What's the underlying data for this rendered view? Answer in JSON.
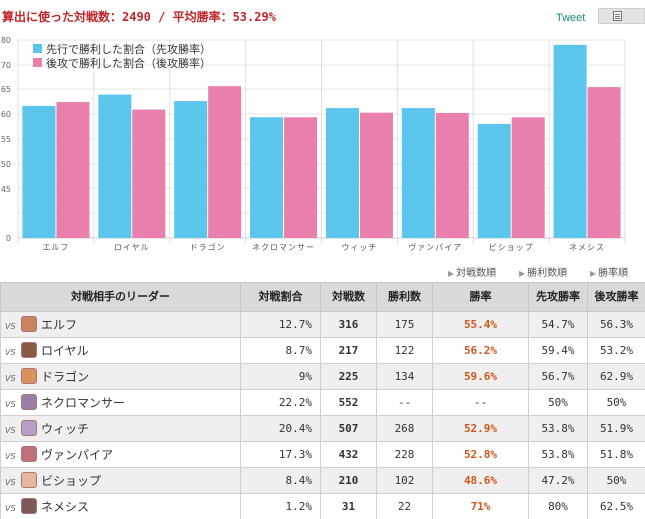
{
  "header": {
    "summary": "算出に使った対戦数：2490 / 平均勝率：53.29%",
    "tweet_label": "Tweet",
    "share_icon": "document-icon"
  },
  "chart_data": {
    "type": "bar",
    "title": "",
    "xlabel": "",
    "ylabel": "",
    "y_ticks": [
      "0",
      "45",
      "50",
      "55",
      "60",
      "65",
      "70",
      "80"
    ],
    "legend_position": "top-left",
    "categories": [
      "エルフ",
      "ロイヤル",
      "ドラゴン",
      "ネクロマンサー",
      "ウィッチ",
      "ヴァンパイア",
      "ビショップ",
      "ネメシス"
    ],
    "series": [
      {
        "name": "先行で勝利した割合（先攻勝率）",
        "color": "#5bc5ec",
        "values": [
          54.7,
          59.4,
          56.7,
          50,
          53.8,
          53.8,
          47.2,
          80
        ]
      },
      {
        "name": "後攻で勝利した割合（後攻勝率）",
        "color": "#e87fac",
        "values": [
          56.3,
          53.2,
          62.9,
          50,
          51.9,
          51.8,
          50,
          62.5
        ]
      }
    ]
  },
  "sort": {
    "by_battles": "対戦数順",
    "by_wins": "勝利数順",
    "by_winrate": "勝率順"
  },
  "table": {
    "headers": {
      "leader": "対戦相手のリーダー",
      "share": "対戦割合",
      "battles": "対戦数",
      "wins": "勝利数",
      "winrate": "勝率",
      "first_winrate": "先攻勝率",
      "second_winrate": "後攻勝率"
    },
    "vs_label": "VS",
    "rows": [
      {
        "leader": "エルフ",
        "share": "12.7%",
        "battles": "316",
        "wins": "175",
        "winrate": "55.4%",
        "first": "54.7%",
        "second": "56.3%",
        "avatar_color": "#c8845c"
      },
      {
        "leader": "ロイヤル",
        "share": "8.7%",
        "battles": "217",
        "wins": "122",
        "winrate": "56.2%",
        "first": "59.4%",
        "second": "53.2%",
        "avatar_color": "#8a5a44"
      },
      {
        "leader": "ドラゴン",
        "share": "9%",
        "battles": "225",
        "wins": "134",
        "winrate": "59.6%",
        "first": "56.7%",
        "second": "62.9%",
        "avatar_color": "#d9915e"
      },
      {
        "leader": "ネクロマンサー",
        "share": "22.2%",
        "battles": "552",
        "wins": "--",
        "winrate": "--",
        "first": "50%",
        "second": "50%",
        "avatar_color": "#9a7ea8"
      },
      {
        "leader": "ウィッチ",
        "share": "20.4%",
        "battles": "507",
        "wins": "268",
        "winrate": "52.9%",
        "first": "53.8%",
        "second": "51.9%",
        "avatar_color": "#b4a0c8"
      },
      {
        "leader": "ヴァンパイア",
        "share": "17.3%",
        "battles": "432",
        "wins": "228",
        "winrate": "52.8%",
        "first": "53.8%",
        "second": "51.8%",
        "avatar_color": "#c0707a"
      },
      {
        "leader": "ビショップ",
        "share": "8.4%",
        "battles": "210",
        "wins": "102",
        "winrate": "48.6%",
        "first": "47.2%",
        "second": "50%",
        "avatar_color": "#e3b89c"
      },
      {
        "leader": "ネメシス",
        "share": "1.2%",
        "battles": "31",
        "wins": "22",
        "winrate": "71%",
        "first": "80%",
        "second": "62.5%",
        "avatar_color": "#7a5a58"
      }
    ]
  }
}
